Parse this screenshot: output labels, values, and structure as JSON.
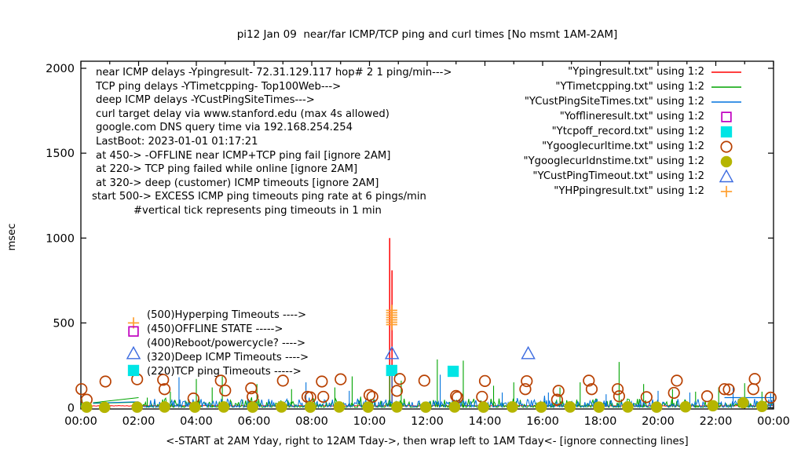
{
  "plot": {
    "info_lines": [
      "near ICMP delays -Ypingresult- 72.31.129.117 hop# 2 1 ping/min--->",
      "TCP ping delays -YTimetcpping- Top100Web--->",
      "deep ICMP delays -YCustPingSiteTimes--->",
      "curl target delay via www.stanford.edu (max 4s allowed)",
      "google.com DNS query time via 192.168.254.254",
      "LastBoot: 2023-01-01 01:17:21",
      "at 450-> -OFFLINE near ICMP+TCP ping fail [ignore 2AM]",
      "at 220-> TCP ping failed while online [ignore 2AM]",
      "at 320-> deep (customer) ICMP timeouts [ignore 2AM]",
      "start 500-> EXCESS ICMP ping timeouts ping rate at 6 pings/min",
      "#vertical tick represents ping timeouts in 1 min"
    ],
    "marker_labels": [
      {
        "marker": "plus",
        "color": "#ffa030",
        "value": 500,
        "label": "(500)Hyperping Timeouts ---->"
      },
      {
        "marker": "open-square",
        "color": "#c000c0",
        "value": 450,
        "label": "(450)OFFLINE STATE ----->"
      },
      {
        "marker": null,
        "color": null,
        "value": 400,
        "label": "(400)Reboot/powercycle? ---->"
      },
      {
        "marker": "open-triangle",
        "color": "#3c6be0",
        "value": 320,
        "label": "(320)Deep ICMP Timeouts ---->"
      },
      {
        "marker": "filled-square",
        "color": "#00e5e5",
        "value": 220,
        "label": "(220)TCP ping Timeouts ----->"
      }
    ],
    "legend": [
      {
        "label": "\"Ypingresult.txt\" using 1:2",
        "marker": "line",
        "color": "#ff0000"
      },
      {
        "label": "\"YTimetcpping.txt\" using 1:2",
        "marker": "line",
        "color": "#00a400"
      },
      {
        "label": "\"YCustPingSiteTimes.txt\" using 1:2",
        "marker": "line",
        "color": "#0072dd"
      },
      {
        "label": "\"Yofflineresult.txt\" using 1:2",
        "marker": "open-square",
        "color": "#c000c0"
      },
      {
        "label": "\"Ytcpoff_record.txt\" using 1:2",
        "marker": "filled-square",
        "color": "#00e5e5"
      },
      {
        "label": "\"Ygooglecurltime.txt\" using 1:2",
        "marker": "open-circle",
        "color": "#b84000"
      },
      {
        "label": "\"Ygooglecurldnstime.txt\" using 1:2",
        "marker": "filled-circle",
        "color": "#b5b500"
      },
      {
        "label": "\"YCustPingTimeout.txt\" using 1:2",
        "marker": "open-triangle",
        "color": "#3c6be0"
      },
      {
        "label": "\"YHPpingresult.txt\" using 1:2",
        "marker": "plus",
        "color": "#ffa030"
      }
    ]
  },
  "chart_data": {
    "type": "line",
    "title": "pi12 Jan 09  near/far ICMP/TCP ping and curl times [No msmt 1AM-2AM]",
    "xlabel": "<-START at 2AM Yday, right to 12AM Tday->, then wrap left to 1AM Tday<- [ignore connecting lines]",
    "ylabel": "msec",
    "xlim": [
      0,
      24
    ],
    "ylim": [
      0,
      2000
    ],
    "xticks": [
      0,
      2,
      4,
      6,
      8,
      10,
      12,
      14,
      16,
      18,
      20,
      22,
      24
    ],
    "xtick_labels": [
      "00:00",
      "02:00",
      "04:00",
      "06:00",
      "08:00",
      "10:00",
      "12:00",
      "14:00",
      "16:00",
      "18:00",
      "20:00",
      "22:00",
      "00:00"
    ],
    "minor_xtick_step": 1,
    "yticks": [
      0,
      500,
      1000,
      1500,
      2000
    ],
    "grid": false,
    "legend_position": "top-right",
    "no_measurement_gap_hours": [
      0.42,
      2.0
    ],
    "series": [
      {
        "name": "Ypingresult.txt",
        "desc": "near ICMP ping delay",
        "color": "#ff0000",
        "render": "flat-line",
        "flat_level": 12,
        "vspikes": [
          [
            10.7,
            1000
          ],
          [
            10.78,
            810
          ]
        ]
      },
      {
        "name": "YTimetcpping.txt",
        "desc": "TCP ping delay Top100Web",
        "color": "#00a400",
        "render": "noise-line",
        "noise": {
          "seed": 7,
          "step": 0.035,
          "base": 3,
          "amp": 52,
          "pow": 3.0
        },
        "spikes": [
          [
            2.3,
            60
          ],
          [
            3.1,
            95
          ],
          [
            4.0,
            170
          ],
          [
            4.55,
            120
          ],
          [
            4.9,
            185
          ],
          [
            6.1,
            140
          ],
          [
            7.3,
            110
          ],
          [
            8.8,
            120
          ],
          [
            9.4,
            185
          ],
          [
            10.7,
            200
          ],
          [
            11.1,
            160
          ],
          [
            12.35,
            285
          ],
          [
            13.25,
            278
          ],
          [
            14.3,
            130
          ],
          [
            15.0,
            150
          ],
          [
            16.6,
            120
          ],
          [
            17.3,
            150
          ],
          [
            18.65,
            270
          ],
          [
            19.5,
            140
          ],
          [
            20.5,
            110
          ],
          [
            21.3,
            95
          ],
          [
            22.1,
            120
          ],
          [
            23.0,
            145
          ],
          [
            23.6,
            95
          ]
        ],
        "connect": [
          [
            0.42,
            30,
            2.0,
            60
          ],
          [
            0.42,
            26,
            2.0,
            33
          ]
        ]
      },
      {
        "name": "YCustPingSiteTimes.txt",
        "desc": "deep ICMP delay",
        "color": "#0072dd",
        "render": "noise-line",
        "noise": {
          "seed": 13,
          "step": 0.035,
          "base": 5,
          "amp": 48,
          "pow": 2.6
        },
        "spikes": [
          [
            3.4,
            180
          ],
          [
            7.8,
            150
          ],
          [
            9.3,
            100
          ],
          [
            10.78,
            230
          ],
          [
            12.45,
            195
          ],
          [
            14.6,
            90
          ],
          [
            16.2,
            90
          ],
          [
            18.2,
            80
          ],
          [
            20.0,
            100
          ],
          [
            21.1,
            90
          ],
          [
            22.6,
            120
          ],
          [
            23.9,
            85
          ]
        ],
        "connect": [
          [
            0.42,
            28,
            2.0,
            36
          ]
        ],
        "segments": [
          [
            22.3,
            60,
            24,
            60
          ]
        ]
      },
      {
        "name": "Yofflineresult.txt",
        "desc": "offline state",
        "color": "#c000c0",
        "render": "points",
        "marker": "open-square",
        "points": []
      },
      {
        "name": "Ytcpoff_record.txt",
        "desc": "TCP ping timeouts",
        "color": "#00e5e5",
        "render": "points",
        "marker": "filled-square",
        "points": [
          [
            10.77,
            220
          ],
          [
            12.9,
            215
          ]
        ]
      },
      {
        "name": "Ygooglecurltime.txt",
        "desc": "curl time google.com",
        "color": "#b84000",
        "render": "points",
        "marker": "open-circle",
        "points": [
          [
            0.02,
            110
          ],
          [
            0.2,
            48
          ],
          [
            0.85,
            155
          ],
          [
            1.95,
            168
          ],
          [
            2.85,
            165
          ],
          [
            2.9,
            110
          ],
          [
            3.9,
            55
          ],
          [
            4.85,
            160
          ],
          [
            5.0,
            102
          ],
          [
            5.9,
            115
          ],
          [
            5.95,
            65
          ],
          [
            7.0,
            160
          ],
          [
            7.85,
            65
          ],
          [
            7.95,
            62
          ],
          [
            8.35,
            155
          ],
          [
            8.4,
            65
          ],
          [
            9.0,
            168
          ],
          [
            10.0,
            75
          ],
          [
            10.1,
            65
          ],
          [
            10.95,
            100
          ],
          [
            11.05,
            170
          ],
          [
            11.9,
            160
          ],
          [
            13.0,
            70
          ],
          [
            13.05,
            62
          ],
          [
            13.9,
            65
          ],
          [
            14.0,
            158
          ],
          [
            15.4,
            110
          ],
          [
            15.45,
            157
          ],
          [
            16.5,
            48
          ],
          [
            16.55,
            100
          ],
          [
            17.6,
            160
          ],
          [
            17.7,
            110
          ],
          [
            18.6,
            110
          ],
          [
            18.65,
            68
          ],
          [
            19.6,
            63
          ],
          [
            20.55,
            88
          ],
          [
            20.65,
            160
          ],
          [
            21.7,
            68
          ],
          [
            22.3,
            110
          ],
          [
            22.45,
            108
          ],
          [
            23.3,
            110
          ],
          [
            23.35,
            170
          ],
          [
            23.9,
            60
          ]
        ]
      },
      {
        "name": "Ygooglecurldnstime.txt",
        "desc": "google DNS query time",
        "color": "#b5b500",
        "render": "points",
        "marker": "filled-circle",
        "points": [
          [
            0.2,
            4
          ],
          [
            0.82,
            3
          ],
          [
            1.95,
            4
          ],
          [
            2.9,
            5
          ],
          [
            3.95,
            4
          ],
          [
            4.95,
            5
          ],
          [
            5.95,
            4
          ],
          [
            6.95,
            5
          ],
          [
            7.95,
            4
          ],
          [
            8.95,
            5
          ],
          [
            9.95,
            4
          ],
          [
            10.95,
            5
          ],
          [
            11.95,
            4
          ],
          [
            12.95,
            5
          ],
          [
            13.95,
            4
          ],
          [
            14.95,
            5
          ],
          [
            15.95,
            4
          ],
          [
            16.95,
            5
          ],
          [
            17.95,
            4
          ],
          [
            18.95,
            5
          ],
          [
            19.95,
            4
          ],
          [
            20.95,
            6
          ],
          [
            21.9,
            12
          ],
          [
            22.95,
            30
          ],
          [
            23.6,
            8
          ]
        ]
      },
      {
        "name": "YCustPingTimeout.txt",
        "desc": "deep ICMP timeouts",
        "color": "#3c6be0",
        "render": "points",
        "marker": "open-triangle",
        "points": [
          [
            10.78,
            320
          ],
          [
            15.5,
            320
          ]
        ]
      },
      {
        "name": "YHPpingresult.txt",
        "desc": "hyperping timeouts",
        "color": "#ffa030",
        "render": "points",
        "marker": "plus",
        "points": [
          [
            10.77,
            490
          ],
          [
            10.77,
            504
          ],
          [
            10.77,
            518
          ],
          [
            10.77,
            532
          ],
          [
            10.77,
            546
          ],
          [
            10.77,
            560
          ],
          [
            10.77,
            574
          ]
        ]
      }
    ]
  }
}
